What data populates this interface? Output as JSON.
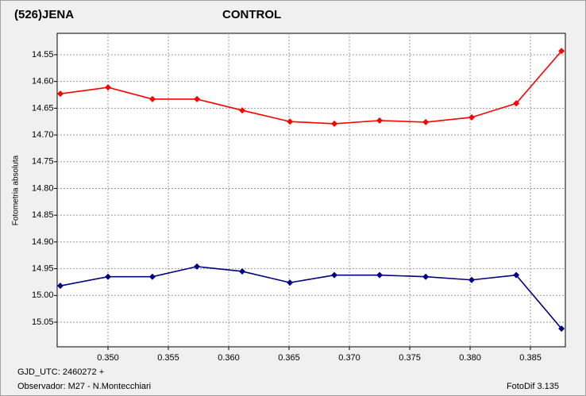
{
  "chart_data": {
    "type": "line",
    "y_label": "Fotometria absoluta",
    "footer_left": [
      "GJD_UTC: 2460272 +",
      "Observador: M27 - N.Montecchiari"
    ],
    "footer_right": "FotoDif 3.135",
    "x": [
      0.34605,
      0.35,
      0.35368,
      0.35737,
      0.36112,
      0.36507,
      0.36875,
      0.3725,
      0.37632,
      0.38013,
      0.38382,
      0.38757
    ],
    "series": [
      {
        "name": "(526)JENA",
        "color": "#ff0000",
        "values": [
          14.623,
          14.611,
          14.633,
          14.633,
          14.654,
          14.675,
          14.679,
          14.673,
          14.676,
          14.667,
          14.641,
          14.543
        ]
      },
      {
        "name": "CONTROL",
        "color": "#000080",
        "values": [
          14.982,
          14.965,
          14.965,
          14.946,
          14.955,
          14.976,
          14.962,
          14.962,
          14.965,
          14.971,
          14.962,
          15.062
        ]
      }
    ],
    "xlim": [
      0.34579,
      0.38789
    ],
    "ylim": [
      14.51,
      15.096
    ],
    "y_inverted": true,
    "xticks": [
      {
        "value": 0.35,
        "label": "0.350"
      },
      0.355,
      {
        "value": 0.36,
        "label": "0.360"
      },
      0.365,
      {
        "value": 0.37,
        "label": "0.370"
      },
      0.375,
      {
        "value": 0.38,
        "label": "0.380"
      },
      0.385
    ],
    "yticks": [
      14.55,
      {
        "value": 14.6,
        "label": "14.60"
      },
      14.65,
      {
        "value": 14.7,
        "label": "14.70"
      },
      14.75,
      {
        "value": 14.8,
        "label": "14.80"
      },
      14.85,
      {
        "value": 14.9,
        "label": "14.90"
      },
      14.95,
      {
        "value": 15,
        "label": "15.00"
      },
      15.05
    ],
    "grid": true
  }
}
